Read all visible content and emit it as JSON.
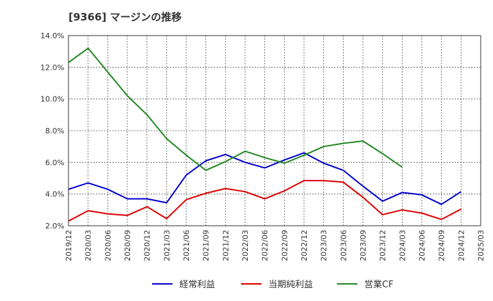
{
  "title": "[9366]  マージンの推移",
  "chart_data": {
    "type": "line",
    "title": "[9366]  マージンの推移",
    "xlabel": "",
    "ylabel": "",
    "categories": [
      "2019/12",
      "2020/03",
      "2020/06",
      "2020/09",
      "2020/12",
      "2021/03",
      "2021/06",
      "2021/09",
      "2021/12",
      "2022/03",
      "2022/06",
      "2022/09",
      "2022/12",
      "2023/03",
      "2023/06",
      "2023/09",
      "2023/12",
      "2024/03",
      "2024/06",
      "2024/09",
      "2024/12",
      "2025/03"
    ],
    "y_ticks": [
      "2.0%",
      "4.0%",
      "6.0%",
      "8.0%",
      "10.0%",
      "12.0%",
      "14.0%"
    ],
    "ylim": [
      2.0,
      14.0
    ],
    "grid": true,
    "legend_position": "bottom",
    "series": [
      {
        "name": "経常利益",
        "color": "#0000cc",
        "values": [
          4.3,
          4.7,
          4.3,
          3.7,
          3.7,
          3.45,
          5.2,
          6.1,
          6.5,
          6.0,
          5.65,
          6.15,
          6.6,
          5.95,
          5.5,
          4.5,
          3.55,
          4.1,
          3.95,
          3.35,
          4.15,
          null
        ]
      },
      {
        "name": "当期純利益",
        "color": "#dd0000",
        "values": [
          2.3,
          2.95,
          2.75,
          2.65,
          3.2,
          2.45,
          3.65,
          4.05,
          4.35,
          4.15,
          3.7,
          4.2,
          4.85,
          4.85,
          4.75,
          3.8,
          2.7,
          3.0,
          2.8,
          2.4,
          3.05,
          null
        ]
      },
      {
        "name": "営業CF",
        "color": "#228822",
        "values": [
          12.3,
          13.2,
          11.7,
          10.2,
          9.0,
          7.5,
          6.45,
          5.5,
          6.05,
          6.7,
          6.3,
          5.95,
          6.45,
          7.0,
          7.2,
          7.35,
          6.55,
          5.7,
          null,
          null,
          null,
          null
        ]
      }
    ]
  }
}
